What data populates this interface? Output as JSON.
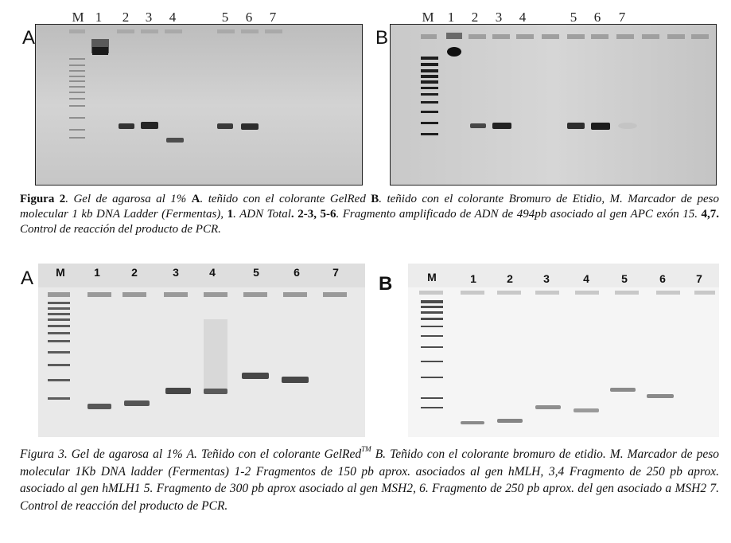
{
  "figure2": {
    "gel_a": {
      "letter": "A",
      "lanes": [
        "M",
        "1",
        "2",
        "3",
        "4",
        "5",
        "6",
        "7"
      ]
    },
    "gel_b": {
      "letter": "B",
      "lanes": [
        "M",
        "1",
        "2",
        "3",
        "4",
        "5",
        "6",
        "7"
      ]
    },
    "caption": {
      "label": "Figura 2",
      "p1": ". Gel de agarosa al 1% ",
      "b_a": "A",
      "p2": ". teñido con el colorante GelRed ",
      "b_b": "B",
      "p3": ". teñido con el colorante Bromuro de Etidio, M. Marcador de peso molecular 1 kb DNA Ladder (Fermentas), ",
      "b_1": "1",
      "p4": ". ADN Total",
      "b_23": ". 2-3, 5-6",
      "p5": ". Fragmento amplificado de ADN de 494pb asociado al gen APC exón 15. ",
      "b_47": "4,7.",
      "p6": " Control de reacción del producto de PCR."
    }
  },
  "figure3": {
    "gel_a": {
      "letter": "A",
      "lanes": [
        "M",
        "1",
        "2",
        "3",
        "4",
        "5",
        "6",
        "7"
      ]
    },
    "gel_b": {
      "letter": "B",
      "lanes": [
        "M",
        "1",
        "2",
        "3",
        "4",
        "5",
        "6",
        "7"
      ]
    },
    "caption": {
      "p1": "Figura 3. Gel de agarosa al 1% A. Teñido con el colorante GelRed",
      "tm": "TM",
      "p2": " B. Teñido con el colorante bromuro de etidio. M. Marcador de peso molecular 1Kb DNA ladder (Fermentas) 1-2 Fragmentos de 150 pb aprox. asociados al gen hMLH, 3,4 Fragmento de 250 pb aprox. asociado al gen hMLH1 5. Fragmento de 300 pb aprox asociado al gen MSH2, 6. Fragmento de 250 pb aprox. del gen asociado a MSH2 7. Control de reacción del producto de PCR."
    }
  }
}
